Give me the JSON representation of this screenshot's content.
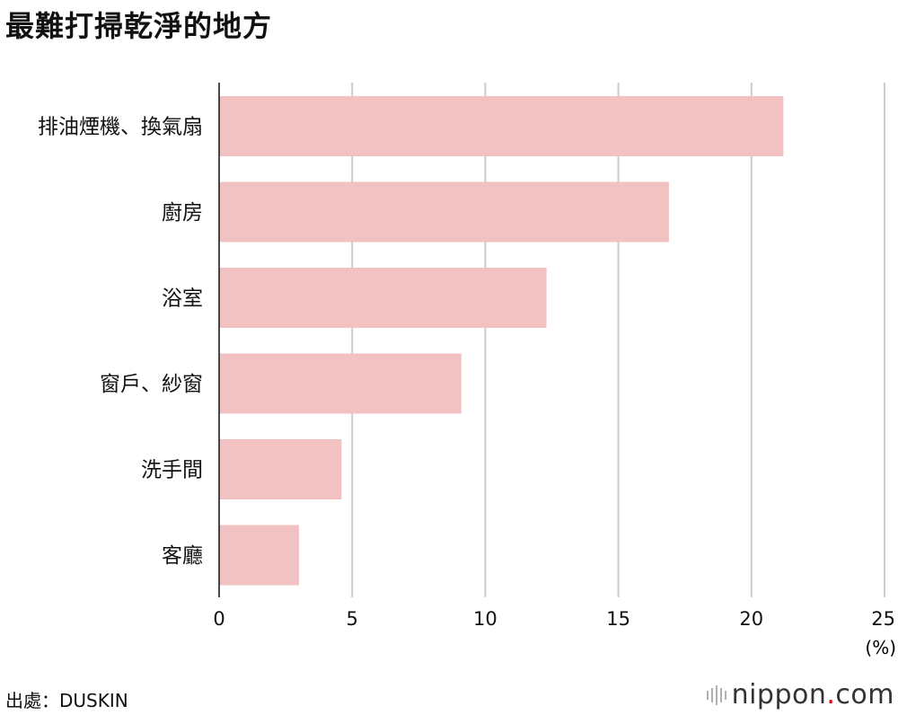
{
  "chart_data": {
    "type": "bar",
    "orientation": "horizontal",
    "title": "最難打掃乾淨的地方",
    "categories": [
      "排油煙機、換氣扇",
      "廚房",
      "浴室",
      "窗戶、紗窗",
      "洗手間",
      "客廳"
    ],
    "values": [
      21.2,
      16.9,
      12.3,
      9.1,
      4.6,
      3.0
    ],
    "xlim": [
      0,
      25
    ],
    "xticks": [
      0,
      5,
      10,
      15,
      20,
      25
    ],
    "unit": "(%)",
    "grid": true,
    "bar_color": "#f1c2c1"
  },
  "source": "出處：DUSKIN",
  "brand": {
    "name": "nippon",
    "dot": ".",
    "tld": "com",
    "dot_color": "#e60012"
  }
}
